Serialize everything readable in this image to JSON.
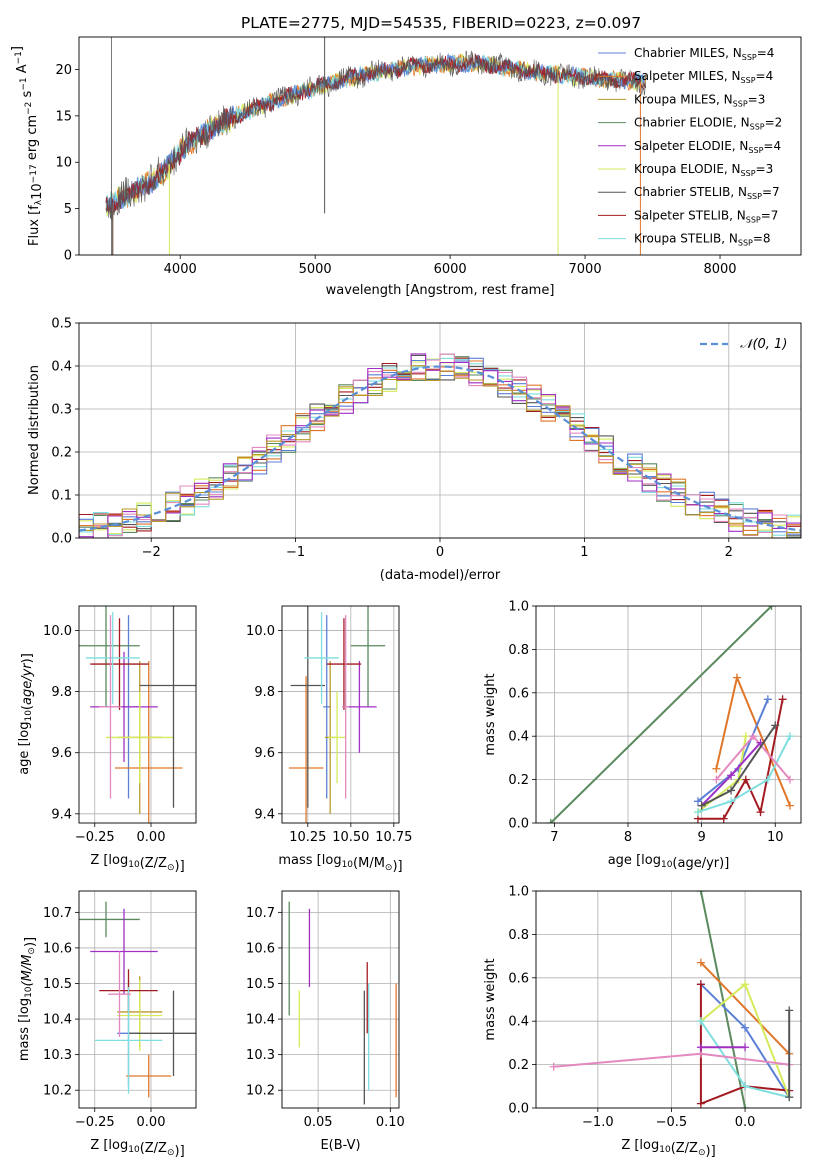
{
  "title": "PLATE=2775, MJD=54535, FIBERID=0223, z=0.097",
  "colors": {
    "Chabrier MILES": "#5c7fd6",
    "Salpeter MILES": "#e0762a",
    "Kroupa MILES": "#b89a2a",
    "Chabrier ELODIE": "#5a8a5e",
    "Salpeter ELODIE": "#a02fc4",
    "Kroupa ELODIE": "#d6ea5c",
    "Chabrier STELIB": "#555555",
    "Salpeter STELIB": "#a31b22",
    "Kroupa STELIB": "#7fdede",
    "pink": "#e389c0",
    "gaussian": "#5a8fd8"
  },
  "chart_data": [
    {
      "type": "line",
      "id": "spectrum",
      "xlabel": "wavelength [Angstrom, rest frame]",
      "ylabel": "Flux [f_λ10^-17 erg cm^-2 s^-1 A^-1]",
      "xlim": [
        3250,
        8600
      ],
      "ylim": [
        0,
        23.5
      ],
      "xticks": [
        4000,
        5000,
        6000,
        7000,
        8000
      ],
      "yticks": [
        0,
        5,
        10,
        15,
        20
      ],
      "grid": false,
      "legend_position": "top-right",
      "legend": [
        {
          "base": "Chabrier MILES, N",
          "sub": "SSP",
          "tail": "=4",
          "color": "Chabrier MILES"
        },
        {
          "base": "Salpeter MILES, N",
          "sub": "SSP",
          "tail": "=4",
          "color": "Salpeter MILES"
        },
        {
          "base": "Kroupa MILES, N",
          "sub": "SSP",
          "tail": "=3",
          "color": "Kroupa MILES"
        },
        {
          "base": "Chabrier ELODIE, N",
          "sub": "SSP",
          "tail": "=2",
          "color": "Chabrier ELODIE"
        },
        {
          "base": "Salpeter ELODIE, N",
          "sub": "SSP",
          "tail": "=4",
          "color": "Salpeter ELODIE"
        },
        {
          "base": "Kroupa ELODIE, N",
          "sub": "SSP",
          "tail": "=3",
          "color": "Kroupa ELODIE"
        },
        {
          "base": "Chabrier STELIB, N",
          "sub": "SSP",
          "tail": "=7",
          "color": "Chabrier STELIB"
        },
        {
          "base": "Salpeter STELIB, N",
          "sub": "SSP",
          "tail": "=7",
          "color": "Salpeter STELIB"
        },
        {
          "base": "Kroupa STELIB, N",
          "sub": "SSP",
          "tail": "=8",
          "color": "Kroupa STELIB"
        }
      ],
      "envelope": [
        [
          3450,
          5.2
        ],
        [
          3550,
          6.0
        ],
        [
          3650,
          6.8
        ],
        [
          3750,
          7.6
        ],
        [
          3850,
          8.6
        ],
        [
          3950,
          10.3
        ],
        [
          4050,
          12.0
        ],
        [
          4150,
          12.8
        ],
        [
          4300,
          14.2
        ],
        [
          4500,
          15.5
        ],
        [
          4700,
          16.6
        ],
        [
          4900,
          17.6
        ],
        [
          5100,
          18.5
        ],
        [
          5300,
          19.3
        ],
        [
          5500,
          19.8
        ],
        [
          5700,
          20.3
        ],
        [
          5900,
          20.6
        ],
        [
          6100,
          20.7
        ],
        [
          6300,
          20.5
        ],
        [
          6500,
          20.0
        ],
        [
          6700,
          19.6
        ],
        [
          6900,
          19.3
        ],
        [
          7100,
          19.0
        ],
        [
          7300,
          18.8
        ],
        [
          7450,
          18.6
        ]
      ],
      "lines": [
        [
          3500,
          "Salpeter MILES"
        ],
        [
          3500,
          "Chabrier STELIB"
        ],
        [
          3920,
          "Kroupa ELODIE"
        ],
        [
          5070,
          "Chabrier STELIB"
        ],
        [
          6800,
          "Kroupa ELODIE"
        ],
        [
          7410,
          "Salpeter MILES"
        ]
      ]
    },
    {
      "type": "line",
      "id": "residuals",
      "xlabel": "(data-model)/error",
      "ylabel": "Normed distribution",
      "xlim": [
        -2.5,
        2.5
      ],
      "ylim": [
        0,
        0.5
      ],
      "xticks": [
        -2,
        -1,
        0,
        1,
        2
      ],
      "yticks": [
        0.0,
        0.1,
        0.2,
        0.3,
        0.4,
        0.5
      ],
      "grid": true,
      "legend_position": "top-right",
      "gaussian_label": "𝒩(0, 1)",
      "bin_width": 0.1
    },
    {
      "type": "scatter",
      "id": "age-vs-z",
      "xlabel": {
        "pre": "Z [log",
        "sub": "10",
        "mid": "(Z/Z",
        "sub2": "⊙",
        "post": ")]"
      },
      "ylabel": "age  [log10(age/yr)]",
      "xlim": [
        -0.32,
        0.2
      ],
      "ylim": [
        9.37,
        10.08
      ],
      "xticks": [
        -0.25,
        0.0
      ],
      "yticks": [
        9.4,
        9.6,
        9.8,
        10.0
      ],
      "grid": true,
      "points": [
        {
          "x": -0.1,
          "y": 9.75,
          "xerr": 0.05,
          "yerr": 0.3,
          "c": "Chabrier MILES"
        },
        {
          "x": -0.01,
          "y": 9.55,
          "xerr": 0.15,
          "yerr": 0.35,
          "c": "Salpeter MILES"
        },
        {
          "x": -0.05,
          "y": 9.65,
          "xerr": 0.1,
          "yerr": 0.25,
          "c": "Kroupa MILES"
        },
        {
          "x": -0.2,
          "y": 9.95,
          "xerr": 0.15,
          "yerr": 0.2,
          "c": "Chabrier ELODIE"
        },
        {
          "x": -0.12,
          "y": 9.75,
          "xerr": 0.15,
          "yerr": 0.18,
          "c": "Salpeter ELODIE"
        },
        {
          "x": -0.05,
          "y": 9.65,
          "xerr": 0.15,
          "yerr": 0.15,
          "c": "Kroupa ELODIE"
        },
        {
          "x": 0.1,
          "y": 9.82,
          "xerr": 0.15,
          "yerr": 0.4,
          "c": "Chabrier STELIB"
        },
        {
          "x": -0.14,
          "y": 9.89,
          "xerr": 0.13,
          "yerr": 0.15,
          "c": "Salpeter STELIB"
        },
        {
          "x": -0.17,
          "y": 9.91,
          "xerr": 0.12,
          "yerr": 0.15,
          "c": "Kroupa STELIB"
        },
        {
          "x": -0.18,
          "y": 9.75,
          "xerr": 0.05,
          "yerr": 0.3,
          "c": "pink"
        }
      ]
    },
    {
      "type": "scatter",
      "id": "age-vs-mass",
      "xlabel": {
        "pre": "mass [log",
        "sub": "10",
        "mid": "(M/M",
        "sub2": "⊙",
        "post": ")]"
      },
      "ylabel": "",
      "xlim": [
        10.1,
        10.78
      ],
      "ylim": [
        9.37,
        10.08
      ],
      "xticks": [
        10.25,
        10.5,
        10.75
      ],
      "yticks": [
        9.4,
        9.6,
        9.8,
        10.0
      ],
      "grid": true,
      "points": [
        {
          "x": 10.36,
          "y": 9.75,
          "xerr": 0.02,
          "yerr": 0.3,
          "c": "Chabrier MILES"
        },
        {
          "x": 10.24,
          "y": 9.55,
          "xerr": 0.1,
          "yerr": 0.3,
          "c": "Salpeter MILES"
        },
        {
          "x": 10.38,
          "y": 9.65,
          "xerr": 0.03,
          "yerr": 0.25,
          "c": "Kroupa MILES"
        },
        {
          "x": 10.6,
          "y": 9.95,
          "xerr": 0.1,
          "yerr": 0.2,
          "c": "Chabrier ELODIE"
        },
        {
          "x": 10.55,
          "y": 9.75,
          "xerr": 0.1,
          "yerr": 0.15,
          "c": "Salpeter ELODIE"
        },
        {
          "x": 10.42,
          "y": 9.65,
          "xerr": 0.05,
          "yerr": 0.15,
          "c": "Kroupa ELODIE"
        },
        {
          "x": 10.25,
          "y": 9.82,
          "xerr": 0.1,
          "yerr": 0.4,
          "c": "Chabrier STELIB"
        },
        {
          "x": 10.46,
          "y": 9.89,
          "xerr": 0.1,
          "yerr": 0.15,
          "c": "Salpeter STELIB"
        },
        {
          "x": 10.33,
          "y": 9.91,
          "xerr": 0.1,
          "yerr": 0.15,
          "c": "Kroupa STELIB"
        },
        {
          "x": 10.47,
          "y": 9.75,
          "xerr": 0.02,
          "yerr": 0.3,
          "c": "pink"
        }
      ]
    },
    {
      "type": "line",
      "id": "weight-vs-age",
      "xlabel": {
        "pre": "age  [log",
        "sub": "10",
        "mid": "(age/yr)]",
        "sub2": "",
        "post": ""
      },
      "ylabel": "mass weight",
      "xlim": [
        6.75,
        10.35
      ],
      "ylim": [
        0,
        1.0
      ],
      "xticks": [
        7,
        8,
        9,
        10
      ],
      "yticks": [
        0.0,
        0.2,
        0.4,
        0.6,
        0.8,
        1.0
      ],
      "grid": true,
      "series": [
        {
          "c": "Chabrier ELODIE",
          "x": [
            6.95,
            9.95
          ],
          "y": [
            0.0,
            1.0
          ]
        },
        {
          "c": "Salpeter MILES",
          "x": [
            9.2,
            9.48,
            10.2
          ],
          "y": [
            0.25,
            0.67,
            0.08
          ]
        },
        {
          "c": "Chabrier MILES",
          "x": [
            8.95,
            9.5,
            9.9
          ],
          "y": [
            0.1,
            0.25,
            0.57
          ]
        },
        {
          "c": "Salpeter STELIB",
          "x": [
            8.95,
            9.3,
            9.6,
            9.8,
            10.1
          ],
          "y": [
            0.02,
            0.02,
            0.2,
            0.05,
            0.57
          ]
        },
        {
          "c": "Kroupa ELODIE",
          "x": [
            8.95,
            9.5,
            9.6
          ],
          "y": [
            0.05,
            0.2,
            0.4
          ]
        },
        {
          "c": "Kroupa STELIB",
          "x": [
            8.95,
            9.4,
            9.9,
            10.2
          ],
          "y": [
            0.05,
            0.1,
            0.2,
            0.4
          ]
        },
        {
          "c": "pink",
          "x": [
            9.2,
            9.7,
            10.2
          ],
          "y": [
            0.2,
            0.4,
            0.2
          ]
        },
        {
          "c": "Salpeter ELODIE",
          "x": [
            9.0,
            9.4,
            9.8
          ],
          "y": [
            0.08,
            0.22,
            0.37
          ]
        },
        {
          "c": "Chabrier STELIB",
          "x": [
            9.0,
            9.4,
            10.0
          ],
          "y": [
            0.08,
            0.15,
            0.45
          ]
        }
      ]
    },
    {
      "type": "scatter",
      "id": "mass-vs-z",
      "xlabel": {
        "pre": "Z [log",
        "sub": "10",
        "mid": "(Z/Z",
        "sub2": "⊙",
        "post": ")]"
      },
      "ylabel": "mass [log10(M/M⊙)]",
      "xlim": [
        -0.32,
        0.2
      ],
      "ylim": [
        10.15,
        10.76
      ],
      "xticks": [
        -0.25,
        0.0
      ],
      "yticks": [
        10.2,
        10.3,
        10.4,
        10.5,
        10.6,
        10.7
      ],
      "grid": true,
      "points": [
        {
          "x": -0.1,
          "y": 10.36,
          "xerr": 0.05,
          "yerr": 0.15,
          "c": "Chabrier MILES"
        },
        {
          "x": -0.01,
          "y": 10.24,
          "xerr": 0.1,
          "yerr": 0.06,
          "c": "Salpeter MILES"
        },
        {
          "x": -0.05,
          "y": 10.42,
          "xerr": 0.1,
          "yerr": 0.1,
          "c": "Kroupa MILES"
        },
        {
          "x": -0.2,
          "y": 10.68,
          "xerr": 0.15,
          "yerr": 0.05,
          "c": "Chabrier ELODIE"
        },
        {
          "x": -0.12,
          "y": 10.59,
          "xerr": 0.15,
          "yerr": 0.12,
          "c": "Salpeter ELODIE"
        },
        {
          "x": -0.05,
          "y": 10.41,
          "xerr": 0.1,
          "yerr": 0.1,
          "c": "Kroupa ELODIE"
        },
        {
          "x": 0.1,
          "y": 10.36,
          "xerr": 0.2,
          "yerr": 0.12,
          "c": "Chabrier STELIB"
        },
        {
          "x": -0.1,
          "y": 10.48,
          "xerr": 0.13,
          "yerr": 0.06,
          "c": "Salpeter STELIB"
        },
        {
          "x": -0.1,
          "y": 10.34,
          "xerr": 0.15,
          "yerr": 0.15,
          "c": "Kroupa STELIB"
        },
        {
          "x": -0.14,
          "y": 10.47,
          "xerr": 0.05,
          "yerr": 0.12,
          "c": "pink"
        }
      ]
    },
    {
      "type": "scatter",
      "id": "mass-vs-ebv",
      "xlabel": {
        "pre": "E(B-V)",
        "sub": "",
        "mid": "",
        "sub2": "",
        "post": ""
      },
      "ylabel": "",
      "xlim": [
        0.025,
        0.106
      ],
      "ylim": [
        10.15,
        10.76
      ],
      "xticks": [
        0.05,
        0.1
      ],
      "yticks": [
        10.2,
        10.3,
        10.4,
        10.5,
        10.6,
        10.7
      ],
      "grid": true,
      "points": [
        {
          "x": 0.03,
          "y": 10.57,
          "yerr": 0.16,
          "c": "Chabrier ELODIE"
        },
        {
          "x": 0.037,
          "y": 10.4,
          "yerr": 0.08,
          "c": "Kroupa ELODIE"
        },
        {
          "x": 0.044,
          "y": 10.6,
          "yerr": 0.11,
          "c": "Salpeter ELODIE"
        },
        {
          "x": 0.082,
          "y": 10.32,
          "yerr": 0.16,
          "c": "Chabrier STELIB"
        },
        {
          "x": 0.084,
          "y": 10.46,
          "yerr": 0.1,
          "c": "Salpeter STELIB"
        },
        {
          "x": 0.085,
          "y": 10.35,
          "yerr": 0.15,
          "c": "Kroupa STELIB"
        },
        {
          "x": 0.104,
          "y": 10.34,
          "yerr": 0.16,
          "c": "Salpeter MILES"
        }
      ]
    },
    {
      "type": "line",
      "id": "weight-vs-z",
      "xlabel": {
        "pre": "Z [log",
        "sub": "10",
        "mid": "(Z/Z",
        "sub2": "⊙",
        "post": ")]"
      },
      "ylabel": "mass weight",
      "xlim": [
        -1.42,
        0.38
      ],
      "ylim": [
        0,
        1.0
      ],
      "xticks": [
        -1.0,
        -0.5,
        0.0
      ],
      "yticks": [
        0.0,
        0.2,
        0.4,
        0.6,
        0.8,
        1.0
      ],
      "grid": true,
      "series": [
        {
          "c": "Chabrier ELODIE",
          "x": [
            -0.3,
            0.0
          ],
          "y": [
            1.0,
            0.0
          ]
        },
        {
          "c": "Salpeter MILES",
          "x": [
            -0.3,
            0.3
          ],
          "y": [
            0.67,
            0.25
          ]
        },
        {
          "c": "Chabrier MILES",
          "x": [
            -0.3,
            0.0,
            0.3
          ],
          "y": [
            0.57,
            0.37,
            0.05
          ]
        },
        {
          "c": "Salpeter STELIB",
          "x": [
            -0.3,
            -0.3,
            0.0,
            0.3
          ],
          "y": [
            0.57,
            0.02,
            0.1,
            0.08
          ]
        },
        {
          "c": "Kroupa ELODIE",
          "x": [
            -0.3,
            0.0,
            0.3
          ],
          "y": [
            0.4,
            0.57,
            0.05
          ]
        },
        {
          "c": "Kroupa STELIB",
          "x": [
            -0.3,
            0.0,
            0.3
          ],
          "y": [
            0.4,
            0.1,
            0.05
          ]
        },
        {
          "c": "pink",
          "x": [
            -1.3,
            -0.3,
            0.3
          ],
          "y": [
            0.19,
            0.25,
            0.2
          ]
        },
        {
          "c": "Salpeter ELODIE",
          "x": [
            -0.3,
            0.0
          ],
          "y": [
            0.28,
            0.28
          ]
        },
        {
          "c": "Chabrier STELIB",
          "x": [
            0.3,
            0.3
          ],
          "y": [
            0.05,
            0.45
          ]
        }
      ]
    }
  ]
}
